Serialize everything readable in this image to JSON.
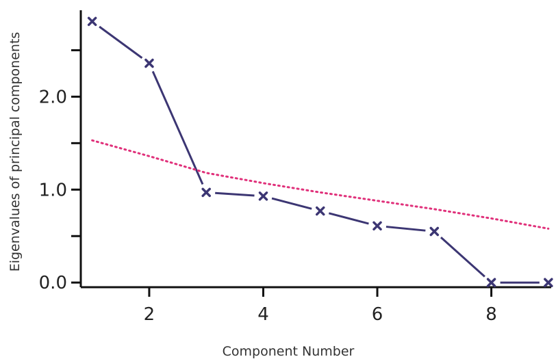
{
  "chart_data": {
    "type": "line",
    "title": "",
    "xlabel": "Component Number",
    "ylabel": "Eigenvalues of principal components",
    "xlim": [
      0.8,
      9.05
    ],
    "ylim": [
      -0.05,
      2.93
    ],
    "x_ticks": [
      2,
      4,
      6,
      8
    ],
    "x_tick_labels": [
      "2",
      "4",
      "6",
      "8"
    ],
    "y_ticks": [
      0.0,
      0.5,
      1.0,
      1.5,
      2.0,
      2.5
    ],
    "y_tick_labels": [
      "0.0",
      "",
      "1.0",
      "",
      "2.0",
      ""
    ],
    "grid": false,
    "legend": "none",
    "series": [
      {
        "x": [
          1,
          2,
          3,
          4,
          5,
          6,
          7,
          8,
          9
        ],
        "values": [
          2.81,
          2.36,
          0.97,
          0.93,
          0.77,
          0.61,
          0.55,
          0.0,
          0.0
        ],
        "color": "#3c3673",
        "style": "solid",
        "marker": "x"
      },
      {
        "x": [
          1,
          2,
          3,
          4,
          5,
          6,
          7,
          8,
          9
        ],
        "values": [
          1.53,
          1.36,
          1.18,
          1.07,
          0.97,
          0.88,
          0.79,
          0.69,
          0.58
        ],
        "color": "#e0307a",
        "style": "dotted",
        "marker": "none"
      }
    ]
  }
}
